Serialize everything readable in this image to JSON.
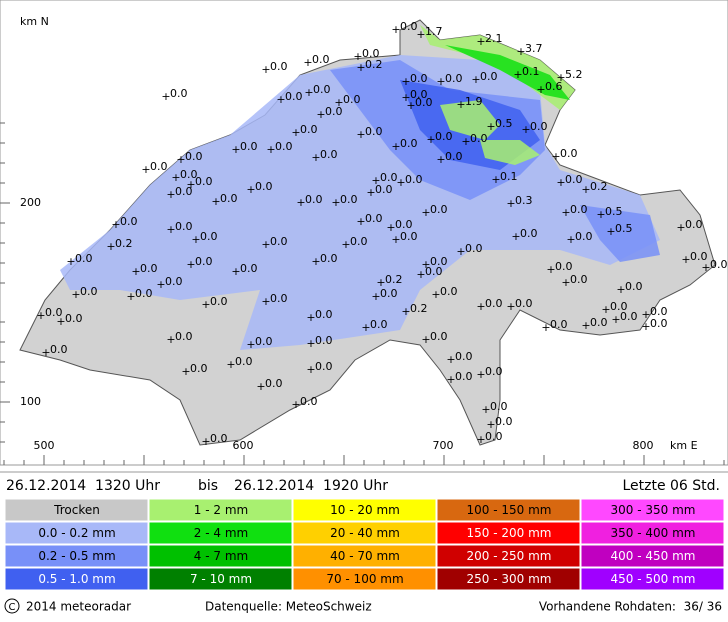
{
  "map": {
    "axis_y_unit": "km N",
    "axis_x_unit": "km E",
    "y_labels": [
      "200",
      "100"
    ],
    "x_labels": [
      "500",
      "600",
      "700",
      "800"
    ],
    "stations": [
      "0.0",
      "1.7",
      "2.1",
      "3.7",
      "5.2",
      "0.1",
      "0.6",
      "0.0",
      "0.2",
      "0.0",
      "0.0",
      "0.0",
      "0.0",
      "0.0",
      "0.0",
      "0.0",
      "0.0",
      "1.9",
      "0.0",
      "0.0",
      "0.0",
      "0.0",
      "0.5",
      "0.0",
      "0.0",
      "0.0",
      "0.0",
      "0.0",
      "0.0",
      "0.0",
      "0.0",
      "0.0",
      "0.0",
      "0.0",
      "0.0",
      "0.0",
      "0.0",
      "0.0",
      "0.1",
      "0.0",
      "0.2",
      "0.0",
      "0.0",
      "0.0",
      "0.0",
      "0.0",
      "0.0",
      "0.0",
      "0.0",
      "0.3",
      "0.0",
      "0.0",
      "0.5",
      "0.5",
      "0.0",
      "0.0",
      "0.0",
      "0.0",
      "0.0",
      "0.0",
      "0.0",
      "0.0",
      "0.2",
      "0.0",
      "0.0",
      "0.0",
      "0.0",
      "0.0",
      "0.0",
      "0.0",
      "0.0",
      "0.0",
      "0.0",
      "0.0",
      "0.0",
      "0.0",
      "0.0",
      "0.0",
      "0.2",
      "0.0",
      "0.0",
      "0.0",
      "0.0",
      "0.0",
      "0.0",
      "0.0",
      "0.0",
      "0.0",
      "0.0",
      "0.0",
      "0.0",
      "0.2",
      "0.0",
      "0.0",
      "0.0",
      "0.0",
      "0.0",
      "0.0",
      "0.0",
      "0.0",
      "0.0",
      "0.0",
      "0.0",
      "0.0",
      "0.0",
      "0.0",
      "0.0",
      "0.0",
      "0.0",
      "0.0",
      "0.0",
      "0.0",
      "0.0",
      "0.0",
      "0.0",
      "0.0",
      "0.0",
      "0.0"
    ]
  },
  "period": {
    "from": "26.12.2014  1320 Uhr",
    "to_word": "bis",
    "to": "26.12.2014  1920 Uhr",
    "span": "Letzte 06 Std."
  },
  "legend": {
    "rows": [
      [
        {
          "label": "Trocken",
          "color": "#c8c8c8"
        },
        {
          "label": "1 - 2 mm",
          "color": "#a8f070"
        },
        {
          "label": "10 - 20 mm",
          "color": "#ffff00"
        },
        {
          "label": "100 - 150 mm",
          "color": "#d86810"
        },
        {
          "label": "300 - 350 mm",
          "color": "#ff48ff"
        }
      ],
      [
        {
          "label": "0.0 - 0.2 mm",
          "color": "#a8b8f8"
        },
        {
          "label": "2 - 4 mm",
          "color": "#10e010"
        },
        {
          "label": "20 - 40 mm",
          "color": "#ffd000"
        },
        {
          "label": "150 - 200 mm",
          "color": "#ff0000"
        },
        {
          "label": "350 - 400 mm",
          "color": "#f020e0"
        }
      ],
      [
        {
          "label": "0.2 - 0.5 mm",
          "color": "#7890f8"
        },
        {
          "label": "4 - 7 mm",
          "color": "#00c000"
        },
        {
          "label": "40 - 70 mm",
          "color": "#ffb000"
        },
        {
          "label": "200 - 250 mm",
          "color": "#d00000"
        },
        {
          "label": "400 - 450 mm",
          "color": "#c000c0"
        }
      ],
      [
        {
          "label": "0.5 - 1.0 mm",
          "color": "#4060f0"
        },
        {
          "label": "7 - 10 mm",
          "color": "#008000"
        },
        {
          "label": "70 - 100 mm",
          "color": "#ff9000"
        },
        {
          "label": "250 - 300 mm",
          "color": "#a00000"
        },
        {
          "label": "450 - 500 mm",
          "color": "#a000ff"
        }
      ]
    ]
  },
  "footer": {
    "copyright": "2014 meteoradar",
    "source": "Datenquelle: MeteoSchweiz",
    "raw": "Vorhandene Rohdaten:  36/ 36"
  }
}
